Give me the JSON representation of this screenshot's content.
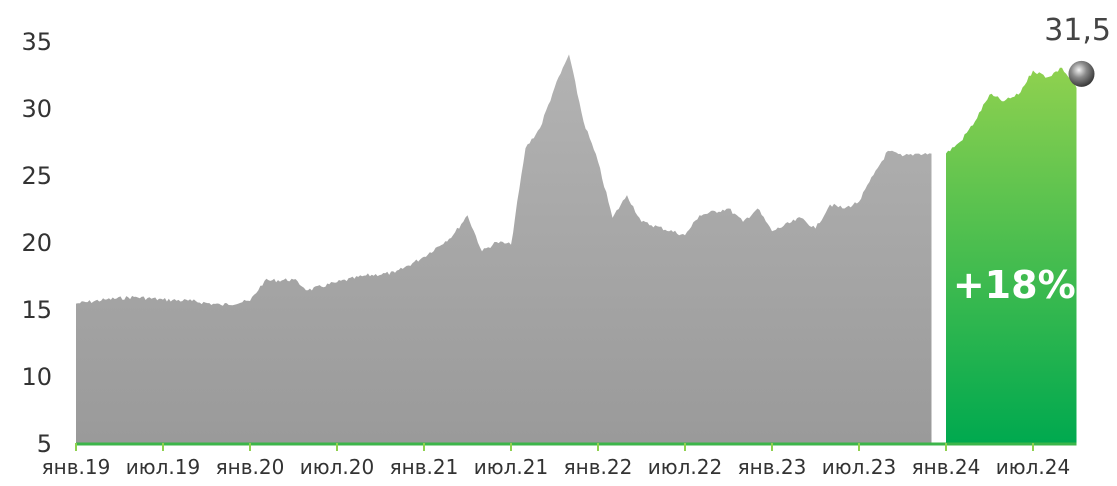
{
  "chart_data": {
    "type": "area",
    "title": "",
    "xlabel": "",
    "ylabel": "",
    "ylim": [
      5,
      35
    ],
    "yticks": [
      5,
      10,
      15,
      20,
      25,
      30,
      35
    ],
    "x_tick_labels": [
      "янв.19",
      "июл.19",
      "янв.20",
      "июл.20",
      "янв.21",
      "июл.21",
      "янв.22",
      "июл.22",
      "янв.23",
      "июл.23",
      "янв.24",
      "июл.24"
    ],
    "grid": false,
    "series": [
      {
        "color": "#a6a6a6",
        "points": [
          [
            "янв.19",
            15.4
          ],
          [
            "мар.19",
            15.7
          ],
          [
            "май.19",
            15.9
          ],
          [
            "июл.19",
            15.7
          ],
          [
            "сен.19",
            15.6
          ],
          [
            "ноя.19",
            15.3
          ],
          [
            "янв.20",
            15.6
          ],
          [
            "фев.20",
            17.1
          ],
          [
            "апр.20",
            17.2
          ],
          [
            "май.20",
            16.4
          ],
          [
            "июл.20",
            17.0
          ],
          [
            "сен.20",
            17.5
          ],
          [
            "ноя.20",
            17.7
          ],
          [
            "янв.21",
            18.9
          ],
          [
            "мар.21",
            20.5
          ],
          [
            "апр.21",
            22.0
          ],
          [
            "май.21",
            19.3
          ],
          [
            "июн.21",
            20.0
          ],
          [
            "июл.21",
            19.8
          ],
          [
            "авг.21",
            27.0
          ],
          [
            "сен.21",
            28.5
          ],
          [
            "окт.21",
            31.5
          ],
          [
            "ноя.21",
            34.0
          ],
          [
            "дек.21",
            29.0
          ],
          [
            "янв.22",
            26.0
          ],
          [
            "фев.22",
            21.8
          ],
          [
            "мар.22",
            23.5
          ],
          [
            "апр.22",
            21.5
          ],
          [
            "июл.22",
            20.5
          ],
          [
            "авг.22",
            22.0
          ],
          [
            "окт.22",
            22.5
          ],
          [
            "ноя.22",
            21.5
          ],
          [
            "дек.22",
            22.5
          ],
          [
            "янв.23",
            20.8
          ],
          [
            "мар.23",
            21.8
          ],
          [
            "апр.23",
            21.0
          ],
          [
            "май.23",
            22.8
          ],
          [
            "июн.23",
            22.5
          ],
          [
            "июл.23",
            23.0
          ],
          [
            "авг.23",
            25.0
          ],
          [
            "сен.23",
            26.8
          ],
          [
            "окт.23",
            26.4
          ],
          [
            "ноя.23",
            26.6
          ],
          [
            "дек.23",
            26.6
          ]
        ]
      },
      {
        "color": "#3cb54a",
        "change_label": "+18%",
        "end_label": "31,5",
        "points": [
          [
            "янв.24",
            26.6
          ],
          [
            "фев.24",
            27.5
          ],
          [
            "мар.24",
            29.0
          ],
          [
            "апр.24",
            31.0
          ],
          [
            "май.24",
            30.5
          ],
          [
            "июн.24",
            31.0
          ],
          [
            "июл.24",
            32.8
          ],
          [
            "авг.24",
            32.3
          ],
          [
            "сен.24",
            33.0
          ],
          [
            "окт.24",
            31.5
          ]
        ]
      }
    ]
  }
}
